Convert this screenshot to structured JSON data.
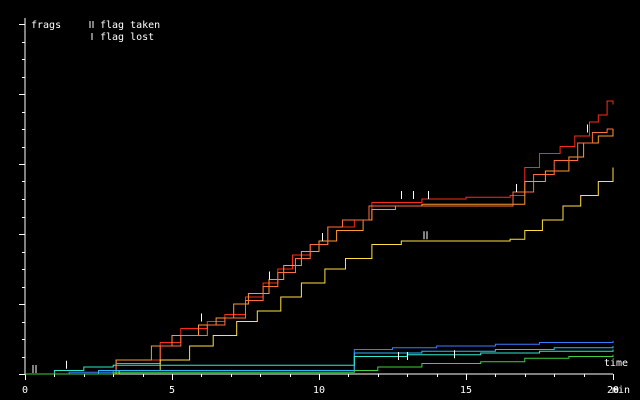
{
  "chart_data": {
    "type": "line",
    "title": "",
    "xlabel": "time",
    "ylabel": "frags",
    "x_unit": "min",
    "xlim": [
      0,
      20
    ],
    "ylim": [
      0,
      100
    ],
    "x_ticks": [
      0,
      5,
      10,
      15,
      20
    ],
    "x_tick_labels": [
      "0",
      "5",
      "10",
      "15",
      "20"
    ],
    "y_ticks": [
      0,
      20,
      40,
      60,
      80,
      100
    ],
    "grid": false,
    "legend": {
      "placement": "top-left",
      "entries": [
        {
          "marker": "double-tick",
          "label": "flag taken"
        },
        {
          "marker": "single-tick",
          "label": "flag lost"
        }
      ]
    },
    "series": [
      {
        "color": "#ff2a1a",
        "values": [
          [
            0,
            0
          ],
          [
            2.5,
            1
          ],
          [
            3.1,
            4
          ],
          [
            4.6,
            9
          ],
          [
            5.3,
            13
          ],
          [
            6.2,
            15
          ],
          [
            6.8,
            17
          ],
          [
            7.5,
            22
          ],
          [
            8.1,
            26
          ],
          [
            8.6,
            30
          ],
          [
            9.1,
            34
          ],
          [
            9.7,
            37
          ],
          [
            10.3,
            42
          ],
          [
            11.2,
            44
          ],
          [
            11.8,
            49
          ],
          [
            13.5,
            50
          ],
          [
            15,
            50.5
          ],
          [
            16.5,
            51
          ],
          [
            17,
            59
          ],
          [
            17.5,
            63
          ],
          [
            18.2,
            65
          ],
          [
            18.7,
            68
          ],
          [
            19.2,
            72
          ],
          [
            19.5,
            74
          ],
          [
            19.8,
            78
          ],
          [
            20,
            77
          ]
        ]
      },
      {
        "color": "#ff9a30",
        "values": [
          [
            0,
            0
          ],
          [
            3.1,
            4
          ],
          [
            4.3,
            8
          ],
          [
            5,
            11
          ],
          [
            5.9,
            14
          ],
          [
            6.5,
            16
          ],
          [
            7.1,
            20
          ],
          [
            7.6,
            23
          ],
          [
            8.3,
            27
          ],
          [
            8.8,
            31
          ],
          [
            9.4,
            35
          ],
          [
            10,
            38
          ],
          [
            10.6,
            41
          ],
          [
            11.5,
            44
          ],
          [
            11.8,
            47
          ],
          [
            12.6,
            48
          ],
          [
            13.5,
            48.5
          ],
          [
            15,
            48.5
          ],
          [
            16.5,
            48.5
          ],
          [
            17,
            55
          ],
          [
            17.7,
            58
          ],
          [
            18.5,
            62
          ],
          [
            19,
            66
          ],
          [
            19.5,
            68
          ],
          [
            20,
            70
          ]
        ]
      },
      {
        "color": "#ff7040",
        "values": [
          [
            0,
            0
          ],
          [
            3.1,
            3
          ],
          [
            4.6,
            8
          ],
          [
            5.3,
            11
          ],
          [
            6.2,
            14
          ],
          [
            6.8,
            16
          ],
          [
            7.5,
            21
          ],
          [
            8.1,
            25
          ],
          [
            8.6,
            29
          ],
          [
            9.2,
            33
          ],
          [
            9.7,
            37
          ],
          [
            10.3,
            42
          ],
          [
            10.8,
            44
          ],
          [
            11.2,
            44
          ],
          [
            11.7,
            48
          ],
          [
            12.5,
            48
          ],
          [
            16.6,
            48
          ],
          [
            16.6,
            52
          ],
          [
            17.3,
            57
          ],
          [
            18,
            61
          ],
          [
            18.8,
            66
          ],
          [
            19.3,
            69
          ],
          [
            19.8,
            70
          ],
          [
            20,
            70
          ]
        ]
      },
      {
        "color": "#ffe040",
        "values": [
          [
            0,
            0
          ],
          [
            3.2,
            1
          ],
          [
            4.6,
            4
          ],
          [
            5.6,
            8
          ],
          [
            6.4,
            11
          ],
          [
            7.2,
            15
          ],
          [
            7.9,
            18
          ],
          [
            8.7,
            22
          ],
          [
            9.4,
            26
          ],
          [
            10.2,
            30
          ],
          [
            10.9,
            33
          ],
          [
            11.8,
            37
          ],
          [
            12.8,
            38
          ],
          [
            14,
            38
          ],
          [
            16.5,
            38.5
          ],
          [
            17,
            41
          ],
          [
            17.6,
            44
          ],
          [
            18.3,
            48
          ],
          [
            18.9,
            51
          ],
          [
            19.5,
            55
          ],
          [
            20,
            59
          ]
        ]
      },
      {
        "color": "#3a7cff",
        "values": [
          [
            0,
            0
          ],
          [
            1.5,
            0.5
          ],
          [
            3,
            1
          ],
          [
            11.2,
            2
          ],
          [
            11.2,
            7
          ],
          [
            12.5,
            7.5
          ],
          [
            14,
            8
          ],
          [
            16,
            8.5
          ],
          [
            17.5,
            9
          ],
          [
            20,
            9.5
          ]
        ]
      },
      {
        "color": "#2fb8ff",
        "values": [
          [
            0,
            0
          ],
          [
            2.5,
            1
          ],
          [
            11.2,
            1.5
          ],
          [
            11.2,
            6
          ],
          [
            13.5,
            6.5
          ],
          [
            16,
            7
          ],
          [
            18,
            7.5
          ],
          [
            20,
            8
          ]
        ]
      },
      {
        "color": "#30e8d0",
        "values": [
          [
            0,
            0
          ],
          [
            1,
            1
          ],
          [
            2,
            2
          ],
          [
            3,
            2.5
          ],
          [
            11.2,
            2.5
          ],
          [
            11.2,
            5
          ],
          [
            13,
            5.5
          ],
          [
            15.5,
            6
          ],
          [
            17.5,
            6.5
          ],
          [
            20,
            7
          ]
        ]
      },
      {
        "color": "#40d040",
        "values": [
          [
            0,
            0
          ],
          [
            3,
            0.5
          ],
          [
            11.2,
            1
          ],
          [
            12,
            2
          ],
          [
            13.5,
            3
          ],
          [
            15.5,
            3.5
          ],
          [
            17,
            4.5
          ],
          [
            18.5,
            5
          ],
          [
            20,
            5.5
          ]
        ]
      }
    ],
    "flag_events": [
      {
        "type": "taken",
        "x": 0.3,
        "y": 0.3,
        "color": "#ffffff"
      },
      {
        "type": "lost",
        "x": 1.4,
        "y": 1.5,
        "color": "#ffffff"
      },
      {
        "type": "lost",
        "x": 6.0,
        "y": 15,
        "color": "#ffffff"
      },
      {
        "type": "lost",
        "x": 8.3,
        "y": 27,
        "color": "#ffffff"
      },
      {
        "type": "lost",
        "x": 10.1,
        "y": 38,
        "color": "#ffffff"
      },
      {
        "type": "lost",
        "x": 12.8,
        "y": 50,
        "color": "#ffffff"
      },
      {
        "type": "lost",
        "x": 13.2,
        "y": 50,
        "color": "#ffffff"
      },
      {
        "type": "lost",
        "x": 13.7,
        "y": 50,
        "color": "#ffffff"
      },
      {
        "type": "taken",
        "x": 13.6,
        "y": 38.5,
        "color": "#ffffff"
      },
      {
        "type": "lost",
        "x": 16.7,
        "y": 52,
        "color": "#ffffff"
      },
      {
        "type": "lost",
        "x": 19.1,
        "y": 69,
        "color": "#ffffff"
      },
      {
        "type": "lost",
        "x": 12.7,
        "y": 4,
        "color": "#ffffff"
      },
      {
        "type": "lost",
        "x": 13.0,
        "y": 4,
        "color": "#ffffff"
      },
      {
        "type": "lost",
        "x": 14.6,
        "y": 4.5,
        "color": "#ffffff"
      }
    ]
  }
}
